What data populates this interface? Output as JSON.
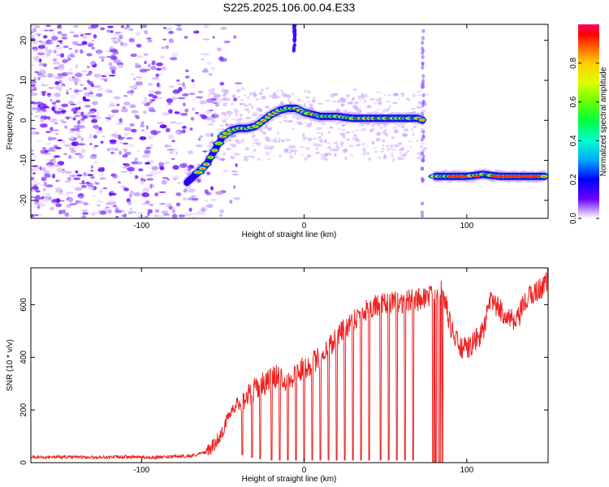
{
  "title": "S225.2025.106.00.04.E33",
  "chart_data": [
    {
      "type": "heatmap",
      "title": "",
      "xlabel": "Height of straight line (km)",
      "ylabel": "Frequency (Hz)",
      "xlim": [
        -168,
        150
      ],
      "ylim": [
        -24.5,
        24
      ],
      "xticks": [
        -100,
        0,
        100
      ],
      "yticks": [
        -20,
        -10,
        0,
        10,
        20
      ],
      "xtick_labels": [
        "-100",
        "0",
        "100"
      ],
      "ytick_labels": [
        "-20",
        "-10",
        "0",
        "10",
        "20"
      ],
      "colorbar": {
        "label": "Normalized spectral amplitude",
        "range": [
          0,
          1
        ],
        "ticks": [
          0.0,
          0.2,
          0.4,
          0.6,
          0.8
        ],
        "tick_labels": [
          "0.0",
          "0.2",
          "0.4",
          "0.6",
          "0.8"
        ],
        "colors": [
          "#ffffff",
          "#c8a0ff",
          "#6a00ff",
          "#0000ff",
          "#00ccff",
          "#00ff44",
          "#c8ff00",
          "#ffdd00",
          "#ff6600",
          "#ff0000",
          "#ff0066"
        ]
      },
      "ridge": {
        "x": [
          -72,
          -65,
          -60,
          -55,
          -50,
          -45,
          -40,
          -35,
          -30,
          -25,
          -20,
          -15,
          -10,
          -5,
          0,
          10,
          20,
          30,
          40,
          50,
          60,
          70,
          73,
          80,
          90,
          100,
          110,
          120,
          130,
          140,
          148
        ],
        "y": [
          -15.5,
          -13,
          -11,
          -7.5,
          -4,
          -2.5,
          -2,
          -2,
          -1.5,
          0,
          1.5,
          2.5,
          3,
          3,
          2,
          1,
          1,
          0.5,
          0.5,
          0.5,
          0.5,
          0.5,
          0,
          -14,
          -14,
          -14,
          -13.5,
          -14,
          -14,
          -14,
          -14
        ]
      },
      "noise_band": {
        "x_from": -168,
        "x_to": -55
      }
    },
    {
      "type": "line",
      "title": "",
      "xlabel": "Height of straight line (km)",
      "ylabel": "SNR (10 * v/v)",
      "xlim": [
        -168,
        150
      ],
      "ylim": [
        0,
        740
      ],
      "xticks": [
        -100,
        0,
        100
      ],
      "yticks": [
        0,
        200,
        400,
        600
      ],
      "xtick_labels": [
        "-100",
        "0",
        "100"
      ],
      "ytick_labels": [
        "0",
        "200",
        "400",
        "600"
      ],
      "color": "#ee2222",
      "series": [
        {
          "x": [
            -168,
            -150,
            -130,
            -110,
            -90,
            -70,
            -60,
            -55,
            -50,
            -45,
            -40,
            -35,
            -30,
            -25,
            -20,
            -15,
            -10,
            -5,
            0,
            10,
            20,
            30,
            40,
            50,
            60,
            70,
            75,
            80,
            85,
            90,
            95,
            100,
            105,
            110,
            115,
            120,
            125,
            130,
            135,
            140,
            145,
            150
          ],
          "y": [
            20,
            22,
            20,
            22,
            20,
            25,
            40,
            70,
            120,
            200,
            230,
            250,
            280,
            300,
            320,
            330,
            310,
            340,
            360,
            400,
            480,
            540,
            590,
            600,
            610,
            620,
            630,
            640,
            660,
            520,
            440,
            430,
            460,
            500,
            620,
            580,
            560,
            520,
            600,
            640,
            660,
            700
          ]
        }
      ],
      "dropouts": [
        {
          "x": -38,
          "y": 30
        },
        {
          "x": -32,
          "y": 20
        },
        {
          "x": -27,
          "y": 15
        },
        {
          "x": -20,
          "y": 10
        },
        {
          "x": -15,
          "y": 10
        },
        {
          "x": -10,
          "y": 10
        },
        {
          "x": -5,
          "y": 10
        },
        {
          "x": 0,
          "y": 10
        },
        {
          "x": 5,
          "y": 10
        },
        {
          "x": 10,
          "y": 10
        },
        {
          "x": 15,
          "y": 10
        },
        {
          "x": 20,
          "y": 10
        },
        {
          "x": 25,
          "y": 10
        },
        {
          "x": 30,
          "y": 10
        },
        {
          "x": 35,
          "y": 10
        },
        {
          "x": 40,
          "y": 10
        },
        {
          "x": 47,
          "y": 10
        },
        {
          "x": 52,
          "y": 10
        },
        {
          "x": 57,
          "y": 10
        },
        {
          "x": 62,
          "y": 10
        },
        {
          "x": 67,
          "y": 10
        },
        {
          "x": 79,
          "y": 0
        },
        {
          "x": 81,
          "y": 0
        },
        {
          "x": 83,
          "y": 0
        },
        {
          "x": 85,
          "y": 0
        }
      ]
    }
  ]
}
